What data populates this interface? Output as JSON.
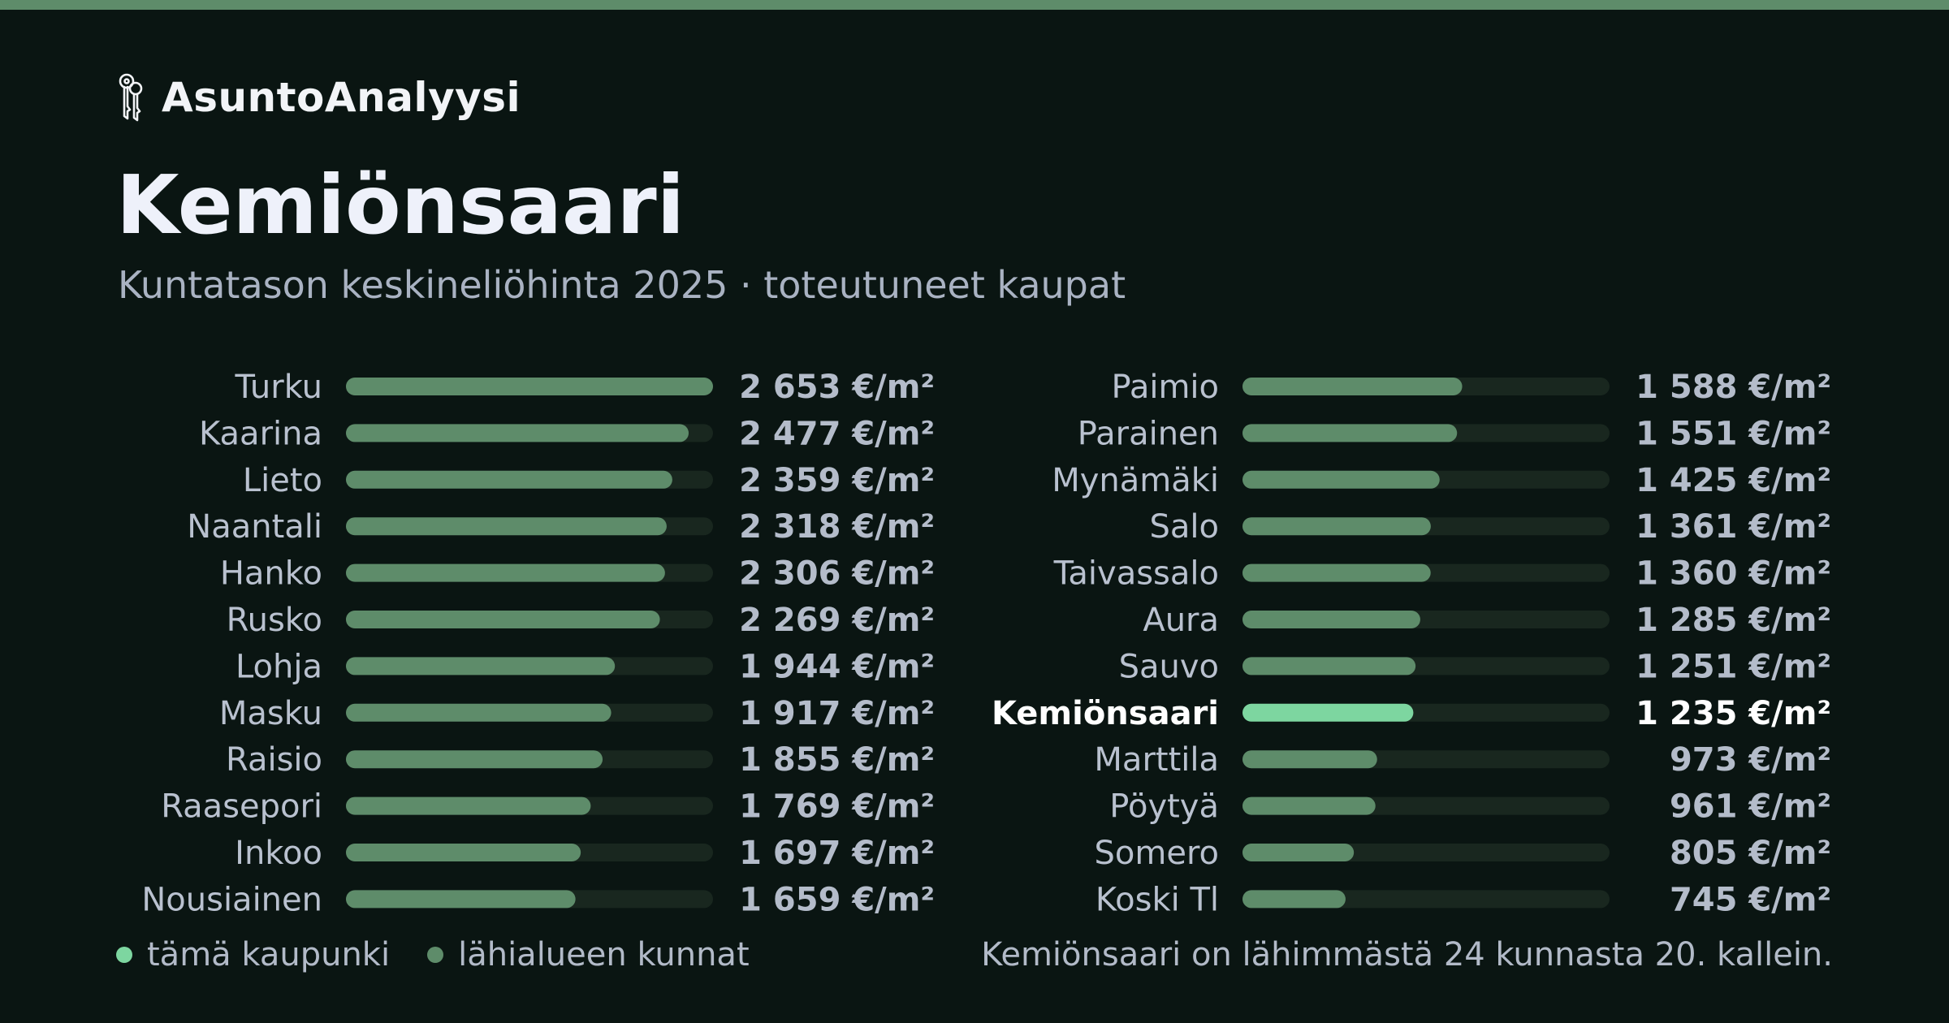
{
  "brand": {
    "name": "AsuntoAnalyysi",
    "icon": "keys-icon"
  },
  "title": "Kemiönsaari",
  "subtitle": "Kuntatason keskineliöhinta 2025 · toteutuneet kaupat",
  "legend": {
    "highlight": "tämä kaupunki",
    "others": "lähialueen kunnat"
  },
  "note": "Kemiönsaari on lähimmästä 24 kunnasta 20. kallein.",
  "colors": {
    "background": "#0a1512",
    "bar": "#5e8c6a",
    "highlight": "#7dd6a0",
    "track": "#19271f",
    "accent_bar": "#5e8c6a"
  },
  "chart_data": {
    "type": "bar",
    "orientation": "horizontal",
    "unit": "€/m²",
    "highlight": "Kemiönsaari",
    "max_value": 2653,
    "columns": [
      [
        {
          "name": "Turku",
          "value": 2653,
          "label": "2 653 €/m²"
        },
        {
          "name": "Kaarina",
          "value": 2477,
          "label": "2 477 €/m²"
        },
        {
          "name": "Lieto",
          "value": 2359,
          "label": "2 359 €/m²"
        },
        {
          "name": "Naantali",
          "value": 2318,
          "label": "2 318 €/m²"
        },
        {
          "name": "Hanko",
          "value": 2306,
          "label": "2 306 €/m²"
        },
        {
          "name": "Rusko",
          "value": 2269,
          "label": "2 269 €/m²"
        },
        {
          "name": "Lohja",
          "value": 1944,
          "label": "1 944 €/m²"
        },
        {
          "name": "Masku",
          "value": 1917,
          "label": "1 917 €/m²"
        },
        {
          "name": "Raisio",
          "value": 1855,
          "label": "1 855 €/m²"
        },
        {
          "name": "Raasepori",
          "value": 1769,
          "label": "1 769 €/m²"
        },
        {
          "name": "Inkoo",
          "value": 1697,
          "label": "1 697 €/m²"
        },
        {
          "name": "Nousiainen",
          "value": 1659,
          "label": "1 659 €/m²"
        }
      ],
      [
        {
          "name": "Paimio",
          "value": 1588,
          "label": "1 588 €/m²"
        },
        {
          "name": "Parainen",
          "value": 1551,
          "label": "1 551 €/m²"
        },
        {
          "name": "Mynämäki",
          "value": 1425,
          "label": "1 425 €/m²"
        },
        {
          "name": "Salo",
          "value": 1361,
          "label": "1 361 €/m²"
        },
        {
          "name": "Taivassalo",
          "value": 1360,
          "label": "1 360 €/m²"
        },
        {
          "name": "Aura",
          "value": 1285,
          "label": "1 285 €/m²"
        },
        {
          "name": "Sauvo",
          "value": 1251,
          "label": "1 251 €/m²"
        },
        {
          "name": "Kemiönsaari",
          "value": 1235,
          "label": "1 235 €/m²"
        },
        {
          "name": "Marttila",
          "value": 973,
          "label": "973 €/m²"
        },
        {
          "name": "Pöytyä",
          "value": 961,
          "label": "961 €/m²"
        },
        {
          "name": "Somero",
          "value": 805,
          "label": "805 €/m²"
        },
        {
          "name": "Koski Tl",
          "value": 745,
          "label": "745 €/m²"
        }
      ]
    ]
  }
}
